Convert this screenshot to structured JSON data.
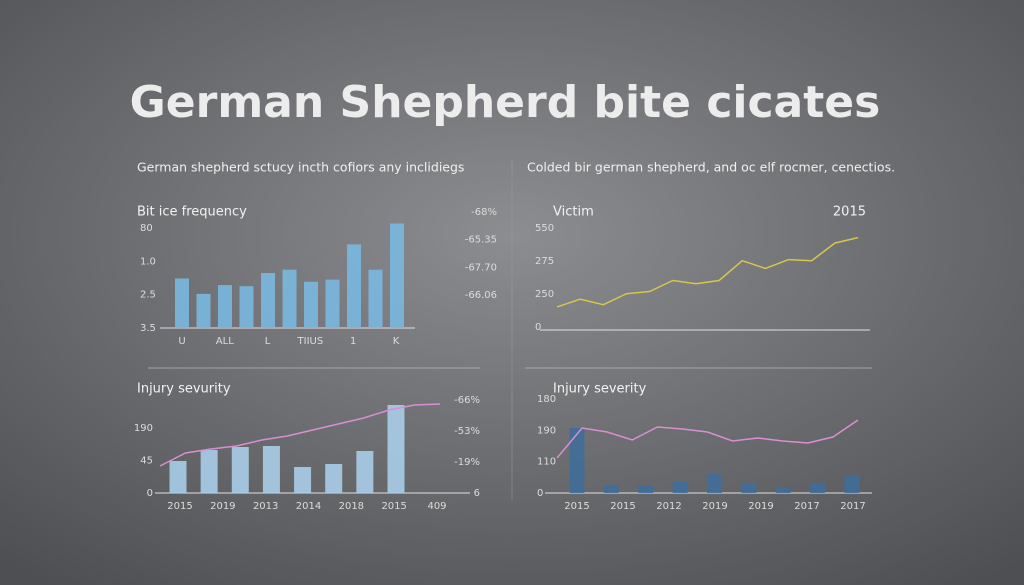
{
  "title": "German Shepherd bite cicates",
  "subtitles": [
    "German shepherd sctucy incth cofiors any inclidiegs",
    "Colded bir german shepherd, and oc elf rocmer, cenectios."
  ],
  "panels": [
    {
      "label": "Bit ice frequency",
      "left_labels": [
        "80",
        "1.0",
        "2.5",
        "3.5"
      ],
      "right_labels": [
        "-68%",
        "-65.35",
        "-67.70",
        "-66.06"
      ],
      "x_labels": [
        "U",
        "ALL",
        "L",
        "TIIUS",
        "1",
        "K"
      ],
      "ylim": [
        0,
        100
      ],
      "bars": {
        "color": "#7ab8e0",
        "values": [
          45,
          31,
          39,
          38,
          50,
          53,
          42,
          44,
          76,
          53,
          95
        ]
      }
    },
    {
      "label": "Victim",
      "corner_label": "2015",
      "left_labels": [
        "550",
        "275",
        "250",
        "0"
      ],
      "ylim": [
        0,
        100
      ],
      "line": {
        "color": "#d8c64a",
        "values": [
          21,
          28,
          23,
          33,
          35,
          45,
          42,
          45,
          63,
          56,
          64,
          63,
          79,
          84
        ]
      }
    },
    {
      "label": "Injury sevurity",
      "left_labels": [
        "190",
        "45",
        "0"
      ],
      "right_labels": [
        "-66%",
        "-53%",
        "-19%",
        "6"
      ],
      "x_labels": [
        "2015",
        "2019",
        "2013",
        "2014",
        "2018",
        "2015",
        "409"
      ],
      "ylim": [
        0,
        100
      ],
      "bars": {
        "color": "#a9cde8",
        "values": [
          32,
          43,
          46,
          47,
          26,
          29,
          42,
          88
        ]
      },
      "line": {
        "color": "#d98fd0",
        "values": [
          27,
          40,
          44,
          47,
          53,
          57,
          63,
          69,
          75,
          83,
          88,
          89
        ]
      }
    },
    {
      "label": "Injury severity",
      "left_labels": [
        "180",
        "190",
        "110",
        "0"
      ],
      "x_labels": [
        "2015",
        "2015",
        "2012",
        "2019",
        "2019",
        "2017",
        "2017"
      ],
      "ylim": [
        0,
        100
      ],
      "bars": {
        "color": "#3f6e99",
        "values": [
          65,
          7,
          8,
          11,
          19,
          10,
          5,
          10,
          18
        ]
      },
      "line": {
        "color": "#d98fd0",
        "values": [
          35,
          65,
          61,
          53,
          66,
          64,
          61,
          52,
          55,
          52,
          50,
          56,
          73
        ]
      }
    }
  ]
}
